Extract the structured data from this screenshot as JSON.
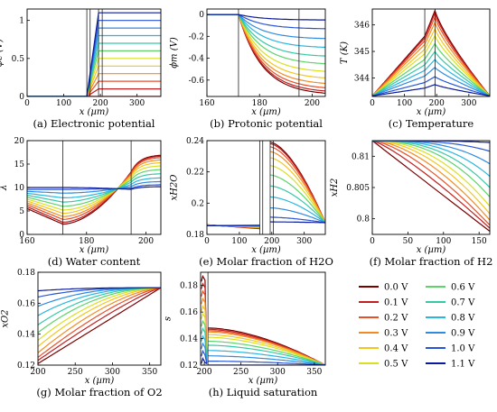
{
  "legend": [
    {
      "label": "0.0 V",
      "color": "#7a0000"
    },
    {
      "label": "0.1 V",
      "color": "#c21f1f"
    },
    {
      "label": "0.2 V",
      "color": "#e8502a"
    },
    {
      "label": "0.3 V",
      "color": "#f28c22"
    },
    {
      "label": "0.4 V",
      "color": "#f2c622"
    },
    {
      "label": "0.5 V",
      "color": "#d9e021"
    },
    {
      "label": "0.6 V",
      "color": "#5fd36a"
    },
    {
      "label": "0.7 V",
      "color": "#35c9a6"
    },
    {
      "label": "0.8 V",
      "color": "#29b6e0"
    },
    {
      "label": "0.9 V",
      "color": "#2f8be0"
    },
    {
      "label": "1.0 V",
      "color": "#2755d6"
    },
    {
      "label": "1.1 V",
      "color": "#0a1a9c"
    }
  ],
  "chart_data": [
    {
      "id": "a",
      "type": "line",
      "caption": "(a) Electronic potential",
      "ylabel": "ϕe (V)",
      "xlabel": "x (µm)",
      "xlim": [
        0,
        365
      ],
      "ylim": [
        0,
        1.15
      ],
      "xticks": [
        0,
        100,
        200,
        300
      ],
      "yticks": [
        0,
        0.5,
        1
      ],
      "xtick_labels": [
        "0",
        "100",
        "200",
        "300"
      ],
      "ytick_labels": [
        "0",
        "0.5",
        "1"
      ],
      "vlines": [
        163,
        172,
        195,
        205
      ],
      "series_note": "per voltage: 0 on anode side (x<=163), constant at cell voltage for x>=195",
      "series_values": [
        0.0,
        0.1,
        0.2,
        0.3,
        0.4,
        0.5,
        0.6,
        0.7,
        0.8,
        0.9,
        1.0,
        1.1
      ],
      "grid": false
    },
    {
      "id": "b",
      "type": "line",
      "caption": "(b) Protonic potential",
      "ylabel": "ϕm (V)",
      "xlabel": "x (µm)",
      "xlim": [
        160,
        205
      ],
      "ylim": [
        -0.75,
        0.05
      ],
      "xticks": [
        160,
        180,
        200
      ],
      "yticks": [
        0,
        -0.2,
        -0.4,
        -0.6
      ],
      "xtick_labels": [
        "160",
        "180",
        "200"
      ],
      "ytick_labels": [
        "0",
        "-0.2",
        "-0.4",
        "-0.6"
      ],
      "vlines": [
        172,
        195
      ],
      "series_end_values": [
        -0.72,
        -0.7,
        -0.67,
        -0.63,
        -0.58,
        -0.52,
        -0.45,
        -0.38,
        -0.3,
        -0.22,
        -0.13,
        -0.05
      ],
      "grid": false
    },
    {
      "id": "c",
      "type": "line",
      "caption": "(c) Temperature",
      "ylabel": "T (K)",
      "xlabel": "x (µm)",
      "xlim": [
        0,
        365
      ],
      "ylim": [
        343.3,
        346.6
      ],
      "xticks": [
        0,
        100,
        200,
        300
      ],
      "yticks": [
        344,
        345,
        346
      ],
      "xtick_labels": [
        "0",
        "100",
        "200",
        "300"
      ],
      "ytick_labels": [
        "344",
        "345",
        "346"
      ],
      "vlines": [
        163,
        195
      ],
      "series_peak_values": [
        346.55,
        346.45,
        346.3,
        346.1,
        345.85,
        345.6,
        345.3,
        345.0,
        344.7,
        344.4,
        344.05,
        343.75
      ],
      "grid": false
    },
    {
      "id": "d",
      "type": "line",
      "caption": "(d) Water content",
      "ylabel": "λ",
      "xlabel": "x (µm)",
      "xlim": [
        160,
        205
      ],
      "ylim": [
        0,
        20
      ],
      "xticks": [
        160,
        180,
        200
      ],
      "yticks": [
        0,
        5,
        10,
        15,
        20
      ],
      "xtick_labels": [
        "160",
        "180",
        "200"
      ],
      "ytick_labels": [
        "0",
        "5",
        "10",
        "15",
        "20"
      ],
      "vlines": [
        172,
        195
      ],
      "series_min_values": [
        2.2,
        2.6,
        3.2,
        3.8,
        4.5,
        5.2,
        6.0,
        6.9,
        7.8,
        8.8,
        9.6,
        10.0
      ],
      "series_end_values": [
        17.0,
        16.8,
        16.5,
        16.0,
        15.4,
        14.7,
        13.9,
        13.0,
        12.1,
        11.3,
        10.6,
        10.2
      ],
      "grid": false
    },
    {
      "id": "e",
      "type": "line",
      "caption": "(e) Molar fraction of H2O",
      "ylabel": "xH2O",
      "xlabel": "x (µm)",
      "xlim": [
        0,
        365
      ],
      "ylim": [
        0.18,
        0.24
      ],
      "xticks": [
        0,
        100,
        200,
        300
      ],
      "yticks": [
        0.18,
        0.2,
        0.22,
        0.24
      ],
      "xtick_labels": [
        "0",
        "100",
        "200",
        "300"
      ],
      "ytick_labels": [
        "0.18",
        "0.2",
        "0.22",
        "0.24"
      ],
      "vlines": [
        163,
        172,
        195,
        205
      ],
      "series_peak_values": [
        0.239,
        0.238,
        0.236,
        0.233,
        0.229,
        0.224,
        0.218,
        0.211,
        0.204,
        0.197,
        0.191,
        0.188
      ],
      "grid": false
    },
    {
      "id": "f",
      "type": "line",
      "caption": "(f) Molar fraction of H2",
      "ylabel": "xH2",
      "xlabel": "x (µm)",
      "xlim": [
        0,
        165
      ],
      "ylim": [
        0.7975,
        0.8125
      ],
      "xticks": [
        0,
        50,
        100,
        150
      ],
      "yticks": [
        0.8,
        0.805,
        0.81
      ],
      "xtick_labels": [
        "0",
        "50",
        "100",
        "150"
      ],
      "ytick_labels": [
        "0.8",
        "0.805",
        "0.81"
      ],
      "series_end_values": [
        0.798,
        0.7985,
        0.799,
        0.7998,
        0.8008,
        0.802,
        0.8035,
        0.805,
        0.8068,
        0.8088,
        0.8108,
        0.8122
      ],
      "grid": false
    },
    {
      "id": "g",
      "type": "line",
      "caption": "(g) Molar fraction of O2",
      "ylabel": "xO2",
      "xlabel": "x (µm)",
      "xlim": [
        200,
        365
      ],
      "ylim": [
        0.12,
        0.18
      ],
      "xticks": [
        200,
        250,
        300,
        350
      ],
      "yticks": [
        0.12,
        0.14,
        0.16,
        0.18
      ],
      "xtick_labels": [
        "200",
        "250",
        "300",
        "350"
      ],
      "ytick_labels": [
        "0.12",
        "0.14",
        "0.16",
        "0.18"
      ],
      "series_start_values": [
        0.121,
        0.123,
        0.125,
        0.128,
        0.132,
        0.136,
        0.141,
        0.146,
        0.152,
        0.158,
        0.164,
        0.168
      ],
      "series_end_value": 0.17,
      "grid": false
    },
    {
      "id": "h",
      "type": "line",
      "caption": "(h) Liquid saturation",
      "ylabel": "s",
      "xlabel": "x (µm)",
      "xlim": [
        195,
        365
      ],
      "ylim": [
        0.12,
        0.19
      ],
      "xticks": [
        200,
        250,
        300,
        350
      ],
      "yticks": [
        0.12,
        0.14,
        0.16,
        0.18
      ],
      "xtick_labels": [
        "200",
        "250",
        "300",
        "350"
      ],
      "ytick_labels": [
        "0.12",
        "0.14",
        "0.16",
        "0.18"
      ],
      "vlines": [
        205
      ],
      "series_start_values": [
        0.148,
        0.147,
        0.146,
        0.145,
        0.143,
        0.141,
        0.138,
        0.135,
        0.131,
        0.127,
        0.123,
        0.12
      ],
      "series_end_value": 0.12,
      "grid": false
    }
  ]
}
